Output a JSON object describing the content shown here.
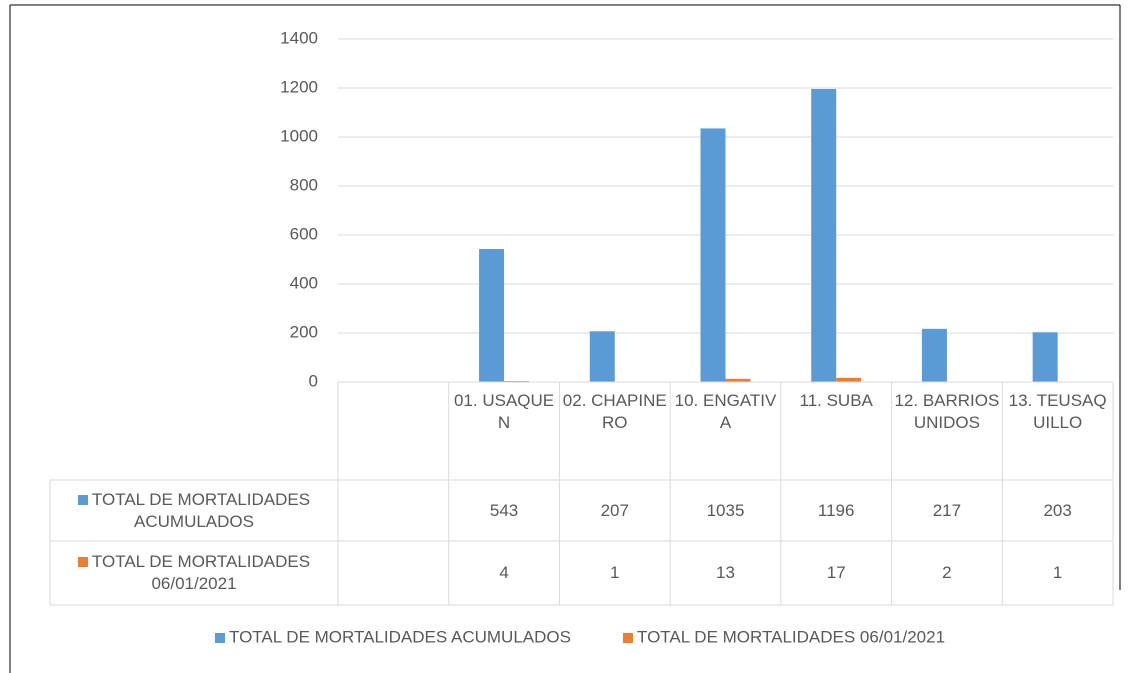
{
  "chart_data": {
    "type": "bar",
    "categories": [
      null,
      "01. USAQUEN",
      "02. CHAPINERO",
      "10. ENGATIVA",
      "11. SUBA",
      "12. BARRIOS UNIDOS",
      "13. TEUSAQUILLO"
    ],
    "series": [
      {
        "name": "TOTAL DE MORTALIDADES ACUMULADOS",
        "color": "#5b9bd5",
        "values": [
          null,
          543,
          207,
          1035,
          1196,
          217,
          203
        ]
      },
      {
        "name": "TOTAL DE MORTALIDADES 06/01/2021",
        "color": "#ed7d31",
        "values": [
          null,
          4,
          1,
          13,
          17,
          2,
          1
        ]
      }
    ],
    "ylim": [
      0,
      1400
    ],
    "yticks": [
      0,
      200,
      400,
      600,
      800,
      1000,
      1200,
      1400
    ],
    "grid": true,
    "legend": "bottom",
    "data_table": true
  }
}
